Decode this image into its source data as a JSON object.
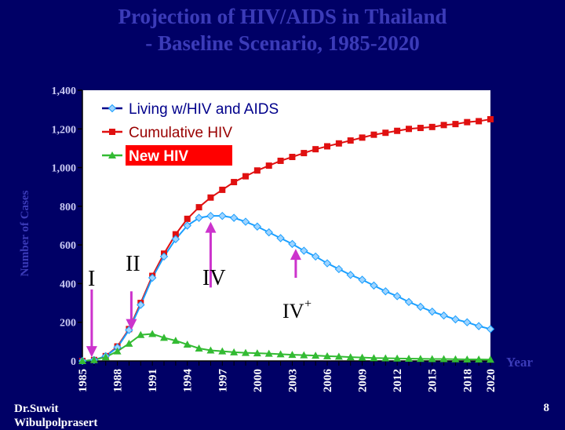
{
  "slide": {
    "title_line1": "Projection of HIV/AIDS in Thailand",
    "title_line2": "- Baseline Scenario, 1985-2020",
    "author_line1": "Dr.Suwit",
    "author_line2": "Wibulpolprasert",
    "page_number": "8"
  },
  "chart_data": {
    "type": "line",
    "ylabel": "Number of Cases",
    "xlabel": "Year",
    "ylim": [
      0,
      1400
    ],
    "yticks": [
      "0",
      "200",
      "400",
      "600",
      "800",
      "1,000",
      "1,200",
      "1,400"
    ],
    "xlim": [
      1985,
      2020
    ],
    "xticks": [
      "1985",
      "1988",
      "1991",
      "1994",
      "1997",
      "2000",
      "2003",
      "2006",
      "2009",
      "2012",
      "2015",
      "2018",
      "2020"
    ],
    "legend_position": "top-left",
    "plot_background": "#ffffff",
    "grid": false,
    "x": [
      1985,
      1986,
      1987,
      1988,
      1989,
      1990,
      1991,
      1992,
      1993,
      1994,
      1995,
      1996,
      1997,
      1998,
      1999,
      2000,
      2001,
      2002,
      2003,
      2004,
      2005,
      2006,
      2007,
      2008,
      2009,
      2010,
      2011,
      2012,
      2013,
      2014,
      2015,
      2016,
      2017,
      2018,
      2019,
      2020
    ],
    "series": [
      {
        "name": "Living w/HIV and AIDS",
        "color": "#1a9fff",
        "marker": "diamond",
        "values": [
          0,
          5,
          25,
          70,
          160,
          290,
          430,
          540,
          630,
          700,
          740,
          750,
          750,
          740,
          720,
          695,
          665,
          635,
          605,
          570,
          540,
          505,
          475,
          445,
          420,
          390,
          360,
          335,
          305,
          280,
          255,
          235,
          215,
          200,
          180,
          165
        ]
      },
      {
        "name": "Cumulative HIV",
        "color": "#e01010",
        "marker": "square",
        "values": [
          0,
          5,
          25,
          75,
          165,
          300,
          440,
          555,
          655,
          735,
          795,
          845,
          885,
          925,
          955,
          985,
          1010,
          1035,
          1055,
          1075,
          1095,
          1110,
          1125,
          1140,
          1155,
          1170,
          1180,
          1190,
          1200,
          1205,
          1210,
          1220,
          1225,
          1235,
          1240,
          1250
        ]
      },
      {
        "name": "New HIV",
        "color": "#33bb33",
        "marker": "triangle",
        "values": [
          0,
          5,
          20,
          50,
          90,
          135,
          140,
          120,
          105,
          85,
          65,
          55,
          50,
          45,
          42,
          40,
          38,
          35,
          32,
          30,
          28,
          25,
          23,
          20,
          18,
          15,
          14,
          13,
          12,
          11,
          10,
          10,
          9,
          8,
          8,
          7
        ]
      }
    ],
    "annotations": [
      {
        "label": "I",
        "arrow": "down",
        "x": 1985.8,
        "from": 370,
        "to": 20
      },
      {
        "label": "II",
        "arrow": "down",
        "x": 1989.2,
        "from": 360,
        "to": 160
      },
      {
        "label": "IV",
        "arrow": "up",
        "x": 1996,
        "from": 380,
        "to": 720
      },
      {
        "label": "IV",
        "superscript": "+",
        "arrow": "up",
        "x": 2003.3,
        "from": 430,
        "to": 580
      }
    ]
  }
}
